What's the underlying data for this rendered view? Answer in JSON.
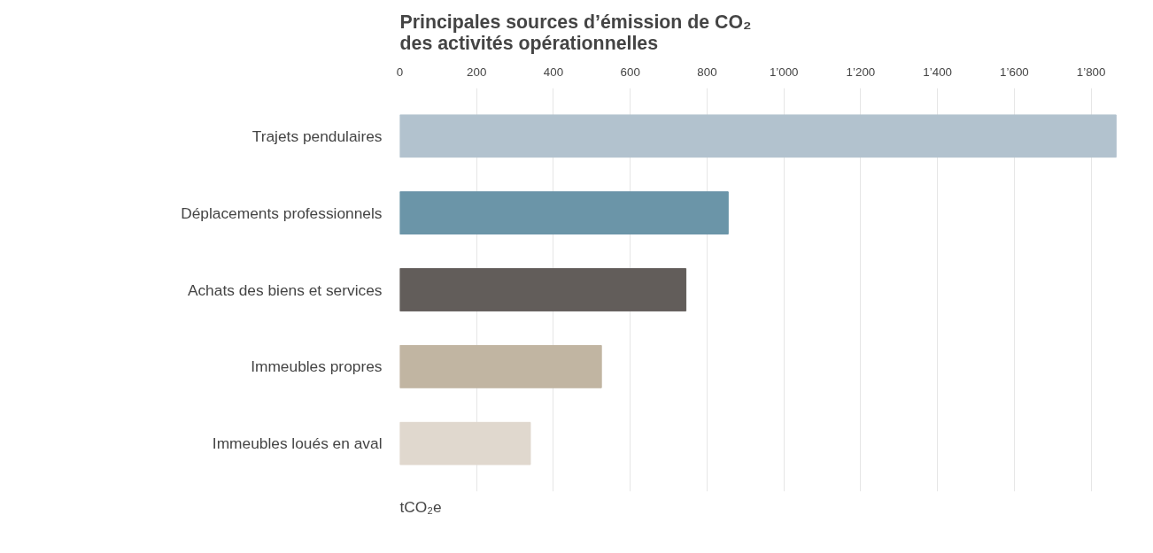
{
  "chart_data": {
    "type": "bar",
    "orientation": "horizontal",
    "title": "Principales sources d’émission de CO₂\ndes activités opérationnelles",
    "xlabel": "tCO₂e",
    "categories": [
      "Trajets pendulaires",
      "Déplacements professionnels",
      "Achats des biens et services",
      "Immeubles propres",
      "Immeubles loués en aval"
    ],
    "values": [
      1865,
      855,
      745,
      525,
      340
    ],
    "colors": [
      "#b2c2ce",
      "#6b95a8",
      "#625d5a",
      "#c1b5a2",
      "#e0d8ce"
    ],
    "xlim": [
      0,
      1870
    ],
    "xticks": [
      0,
      200,
      400,
      600,
      800,
      {
        "value": 1000,
        "label": "1’000"
      },
      {
        "value": 1200,
        "label": "1’200"
      },
      {
        "value": 1400,
        "label": "1’400"
      },
      {
        "value": 1600,
        "label": "1’600"
      },
      {
        "value": 1800,
        "label": "1’800"
      }
    ],
    "grid": "x"
  }
}
